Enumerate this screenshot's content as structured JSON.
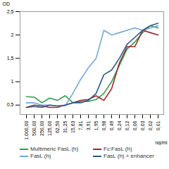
{
  "chart_data": {
    "type": "line",
    "x_label": "ng/ml",
    "y_label": "OD",
    "categories": [
      "1.000,00",
      "500,00",
      "250,00",
      "125,00",
      "62,50",
      "31,25",
      "15,63",
      "7,81",
      "3,91",
      "1,95",
      "0,98",
      "0,49",
      "0,24",
      "0,12",
      "0,06",
      "0,03",
      "0,02",
      "0,01"
    ],
    "series": [
      {
        "name": "Multimeric FasL (h)",
        "color": "#2e9e48",
        "values": [
          0.68,
          0.67,
          0.55,
          0.65,
          0.6,
          0.7,
          0.55,
          0.57,
          0.58,
          0.62,
          0.75,
          1.0,
          1.35,
          1.7,
          1.85,
          2.05,
          2.2,
          2.15
        ]
      },
      {
        "name": "Fc:FasL (h)",
        "color": "#a0282a",
        "values": [
          0.45,
          0.5,
          0.48,
          0.45,
          0.45,
          0.5,
          0.55,
          0.6,
          0.62,
          0.7,
          0.6,
          0.85,
          1.4,
          1.75,
          1.75,
          2.1,
          2.05,
          2.0
        ]
      },
      {
        "name": "FasL (h)",
        "color": "#6fa8dc",
        "values": [
          0.55,
          0.55,
          0.5,
          0.5,
          0.48,
          0.48,
          0.75,
          1.05,
          1.3,
          1.5,
          2.1,
          2.0,
          2.05,
          2.1,
          2.15,
          2.1,
          2.15,
          2.2
        ]
      },
      {
        "name": "FasL (h) + enhancer",
        "color": "#2a5d8f",
        "values": [
          0.45,
          0.47,
          0.45,
          0.5,
          0.48,
          0.5,
          0.55,
          0.55,
          0.6,
          0.75,
          1.15,
          1.25,
          1.5,
          1.8,
          1.95,
          2.1,
          2.2,
          2.25
        ]
      }
    ],
    "ylim": [
      0.3,
      2.5
    ],
    "yticks": [
      {
        "value": 0.5,
        "label": "0,5"
      },
      1,
      {
        "value": 1.5,
        "label": "1,5"
      },
      2,
      {
        "value": 2.5,
        "label": "2,5"
      }
    ],
    "grid": false,
    "legend": "bottom"
  }
}
